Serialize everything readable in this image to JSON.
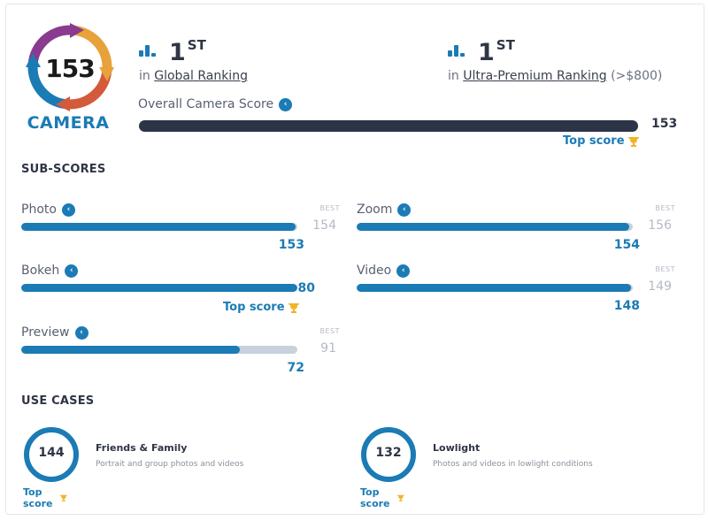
{
  "logo": {
    "score": "153",
    "label": "CAMERA",
    "colors": [
      "#e7a23b",
      "#d45a3c",
      "#8a3a8f",
      "#1b7bb5"
    ]
  },
  "rankings": [
    {
      "position": "1",
      "suffix": "ST",
      "prefix": "in",
      "link": "Global Ranking",
      "extra": ""
    },
    {
      "position": "1",
      "suffix": "ST",
      "prefix": "in",
      "link": "Ultra-Premium Ranking",
      "extra": "(>$800)"
    }
  ],
  "overall": {
    "label": "Overall Camera Score",
    "score": "153",
    "top_label": "Top score",
    "fill_fraction": 1.0
  },
  "subscores_title": "SUB-SCORES",
  "subscores": [
    {
      "label": "Photo",
      "best_label": "BEST",
      "best": "154",
      "score": "153",
      "value": 153,
      "max": 154,
      "top": ""
    },
    {
      "label": "Zoom",
      "best_label": "BEST",
      "best": "156",
      "score": "154",
      "value": 154,
      "max": 156,
      "top": ""
    },
    {
      "label": "Bokeh",
      "best_label": "",
      "best": "",
      "score": "80",
      "value": 80,
      "max": 80,
      "top": "Top score"
    },
    {
      "label": "Video",
      "best_label": "BEST",
      "best": "149",
      "score": "148",
      "value": 148,
      "max": 149,
      "top": ""
    },
    {
      "label": "Preview",
      "best_label": "BEST",
      "best": "91",
      "score": "72",
      "value": 72,
      "max": 91,
      "top": ""
    }
  ],
  "usecases_title": "USE CASES",
  "usecases": [
    {
      "score": "144",
      "name": "Friends & Family",
      "desc": "Portrait and group photos and videos",
      "top": "Top score"
    },
    {
      "score": "132",
      "name": "Lowlight",
      "desc": "Photos and videos in lowlight conditions",
      "top": "Top score"
    }
  ],
  "accent": "#1b7bb5",
  "track": "#c8d1dc",
  "dark_bar": "#2c3447",
  "trophy_color": "#f0b429"
}
